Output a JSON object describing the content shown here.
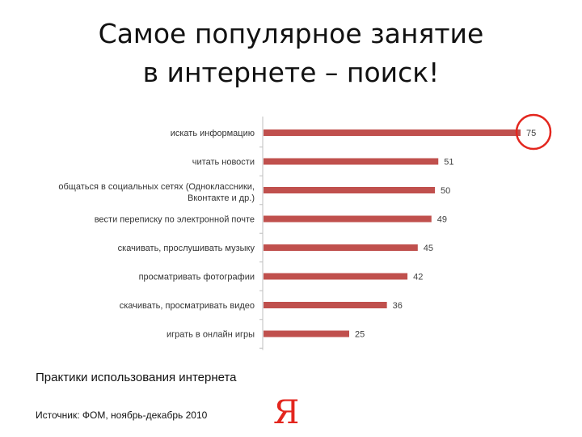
{
  "title": {
    "line1": "Самое популярное занятие",
    "line2": "в интернете – поиск!"
  },
  "chart_data": {
    "type": "bar",
    "orientation": "horizontal",
    "categories": [
      "искать информацию",
      "читать новости",
      "общаться в социальных сетях (Одноклассники, Вконтакте и др.)",
      "вести переписку по электронной почте",
      "скачивать, прослушивать музыку",
      "просматривать фотографии",
      "скачивать, просматривать видео",
      "играть в онлайн игры"
    ],
    "category_lines": [
      [
        "искать информацию"
      ],
      [
        "читать новости"
      ],
      [
        "общаться в социальных сетях (Одноклассники,",
        "Вконтакте и др.)"
      ],
      [
        "вести переписку по электронной почте"
      ],
      [
        "скачивать, прослушивать музыку"
      ],
      [
        "просматривать фотографии"
      ],
      [
        "скачивать, просматривать видео"
      ],
      [
        "играть в онлайн игры"
      ]
    ],
    "values": [
      75,
      51,
      50,
      49,
      45,
      42,
      36,
      25
    ],
    "xlim": [
      0,
      75
    ],
    "bar_color": "#c0504d",
    "highlight_index": 0,
    "highlight_color": "#e3261e",
    "grid": false,
    "legend": "none"
  },
  "caption": "Практики использования интернета",
  "source": "Источник: ФОМ, ноябрь-декабрь 2010",
  "logo_text": "Я"
}
